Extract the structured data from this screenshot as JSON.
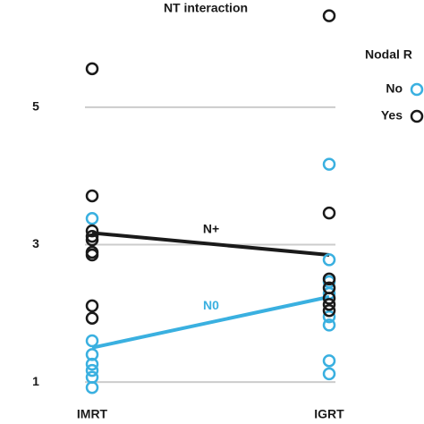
{
  "chart_data": {
    "type": "scatter",
    "title": "NT interaction",
    "categories": [
      "IMRT",
      "IGRT"
    ],
    "ylim": [
      0.39,
      6.56
    ],
    "yticks": [
      1,
      3,
      5
    ],
    "grid": true,
    "legend_title": "Nodal R",
    "series": [
      {
        "name": "No",
        "color": "#3ab0e0",
        "x": [
          "IMRT",
          "IMRT",
          "IMRT",
          "IMRT",
          "IMRT",
          "IMRT",
          "IMRT",
          "IGRT",
          "IGRT",
          "IGRT",
          "IGRT",
          "IGRT",
          "IGRT",
          "IGRT",
          "IGRT"
        ],
        "values": [
          3.38,
          1.6,
          1.4,
          1.26,
          1.17,
          1.07,
          0.92,
          4.17,
          2.78,
          2.46,
          2.29,
          1.95,
          1.83,
          1.31,
          1.12
        ]
      },
      {
        "name": "Yes",
        "color": "#1a1a1a",
        "x": [
          "IMRT",
          "IMRT",
          "IMRT",
          "IMRT",
          "IMRT",
          "IMRT",
          "IMRT",
          "IMRT",
          "IMRT",
          "IGRT",
          "IGRT",
          "IGRT",
          "IGRT",
          "IGRT",
          "IGRT",
          "IGRT"
        ],
        "values": [
          5.56,
          3.71,
          3.2,
          3.12,
          3.07,
          2.89,
          2.85,
          2.11,
          1.93,
          6.33,
          3.46,
          2.5,
          2.37,
          2.22,
          2.13,
          2.04
        ]
      }
    ],
    "lines": [
      {
        "label": "N+",
        "color": "#1a1a1a",
        "values": [
          3.17,
          2.85
        ]
      },
      {
        "label": "N0",
        "color": "#3ab0e0",
        "values": [
          1.5,
          2.24
        ]
      }
    ]
  }
}
